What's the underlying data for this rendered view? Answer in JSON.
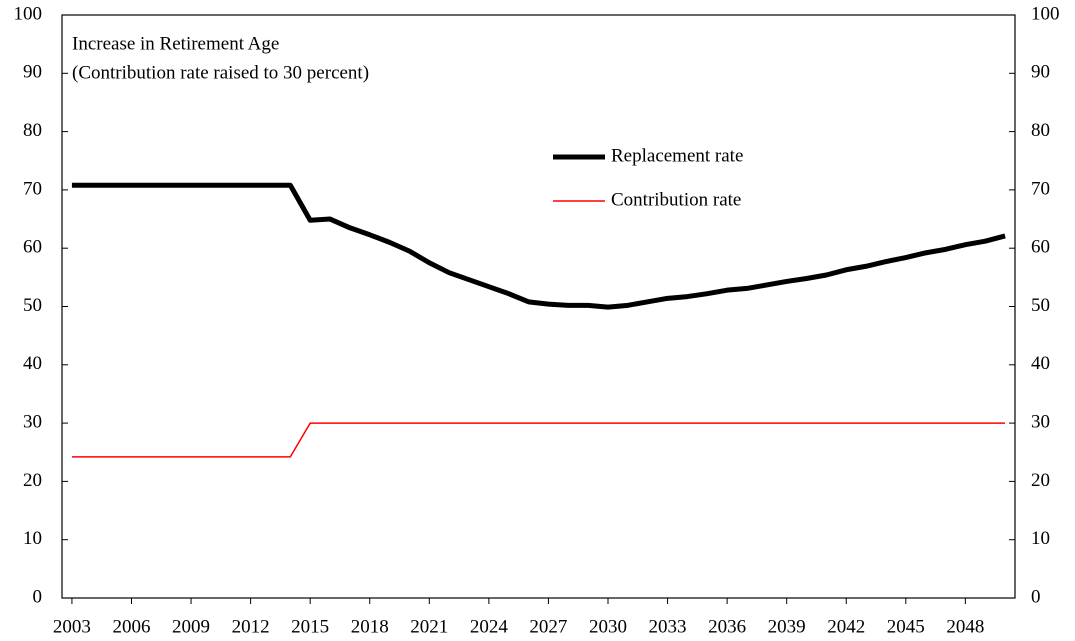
{
  "chart_data": {
    "type": "line",
    "annotations": [
      "Increase in Retirement Age",
      "(Contribution rate raised to 30 percent)"
    ],
    "x": [
      2003,
      2004,
      2005,
      2006,
      2007,
      2008,
      2009,
      2010,
      2011,
      2012,
      2013,
      2014,
      2015,
      2016,
      2017,
      2018,
      2019,
      2020,
      2021,
      2022,
      2023,
      2024,
      2025,
      2026,
      2027,
      2028,
      2029,
      2030,
      2031,
      2032,
      2033,
      2034,
      2035,
      2036,
      2037,
      2038,
      2039,
      2040,
      2041,
      2042,
      2043,
      2044,
      2045,
      2046,
      2047,
      2048,
      2049,
      2050
    ],
    "series": [
      {
        "name": "Replacement rate",
        "color": "#000000",
        "values": [
          70.8,
          70.8,
          70.8,
          70.8,
          70.8,
          70.8,
          70.8,
          70.8,
          70.8,
          70.8,
          70.8,
          70.8,
          64.8,
          65,
          63.5,
          62.3,
          61,
          59.5,
          57.5,
          55.8,
          54.6,
          53.4,
          52.2,
          50.8,
          50.4,
          50.2,
          50.2,
          49.9,
          50.2,
          50.8,
          51.4,
          51.7,
          52.2,
          52.8,
          53.1,
          53.7,
          54.3,
          54.8,
          55.4,
          56.3,
          56.9,
          57.7,
          58.4,
          59.2,
          59.8,
          60.6,
          61.2,
          62.1
        ]
      },
      {
        "name": "Contribution rate",
        "color": "#ff0000",
        "values": [
          24.2,
          24.2,
          24.2,
          24.2,
          24.2,
          24.2,
          24.2,
          24.2,
          24.2,
          24.2,
          24.2,
          24.2,
          30,
          30,
          30,
          30,
          30,
          30,
          30,
          30,
          30,
          30,
          30,
          30,
          30,
          30,
          30,
          30,
          30,
          30,
          30,
          30,
          30,
          30,
          30,
          30,
          30,
          30,
          30,
          30,
          30,
          30,
          30,
          30,
          30,
          30,
          30,
          30
        ]
      }
    ],
    "xlim": [
      2002.5,
      2050.5
    ],
    "xticks": [
      2003,
      2006,
      2009,
      2012,
      2015,
      2018,
      2021,
      2024,
      2027,
      2030,
      2033,
      2036,
      2039,
      2042,
      2045,
      2048
    ],
    "ylim": [
      0,
      100
    ],
    "yticks": [
      0,
      10,
      20,
      30,
      40,
      50,
      60,
      70,
      80,
      90,
      100
    ],
    "y2lim": [
      0,
      100
    ],
    "y2ticks": [
      0,
      10,
      20,
      30,
      40,
      50,
      60,
      70,
      80,
      90,
      100
    ]
  }
}
